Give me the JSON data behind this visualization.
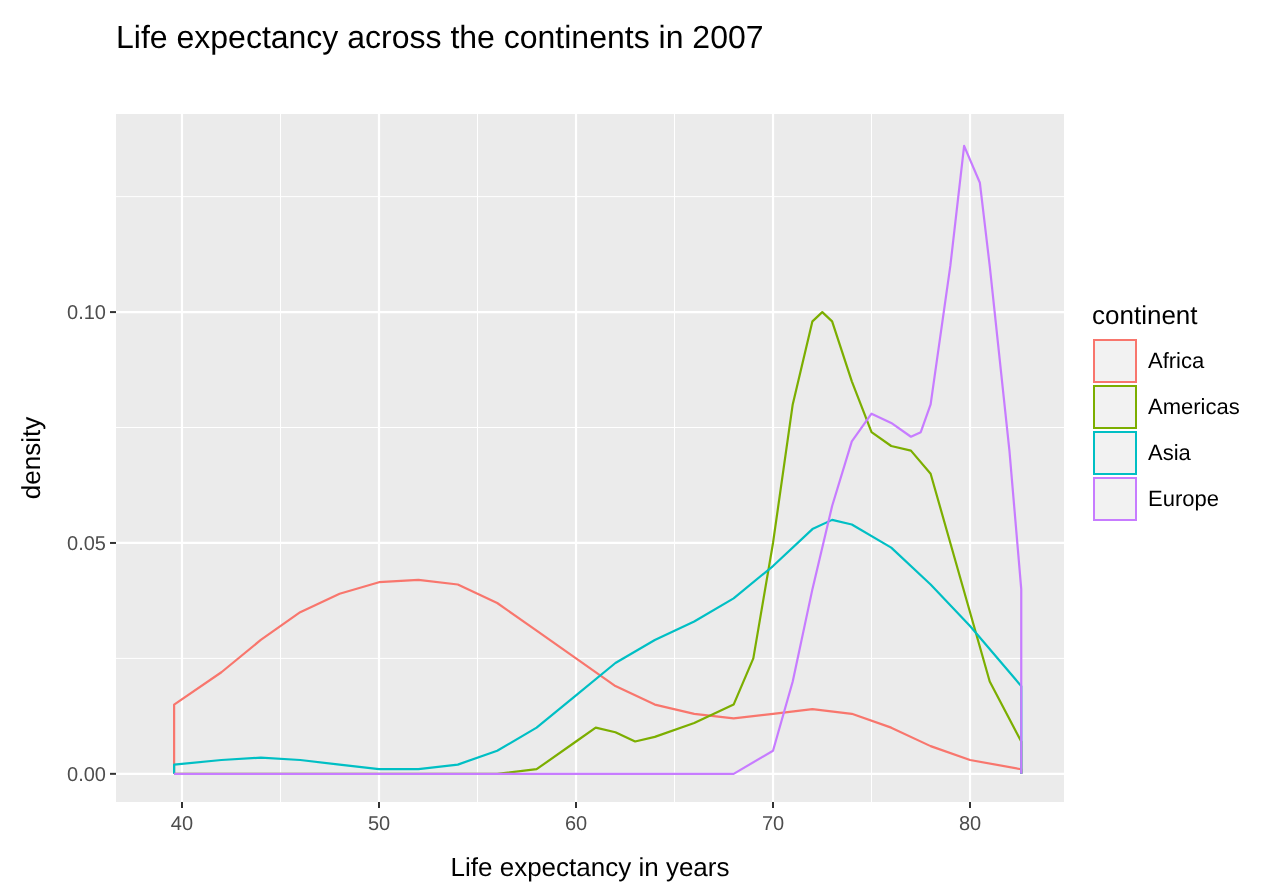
{
  "chart_data": {
    "type": "line",
    "title": "Life expectancy across the continents in 2007",
    "xlabel": "Life expectancy in years",
    "ylabel": "density",
    "legend_title": "continent",
    "legend": "right",
    "grid": true,
    "marker": "none",
    "line_style": "solid",
    "xlim": [
      36.65,
      84.77
    ],
    "ylim": [
      -0.0061,
      0.1429
    ],
    "xticks": [
      40,
      50,
      60,
      70,
      80
    ],
    "yticks": [
      {
        "value": 0,
        "label": "0.00"
      },
      {
        "value": 0.05,
        "label": "0.05"
      },
      {
        "value": 0.1,
        "label": "0.10"
      }
    ],
    "series": [
      {
        "name": "Africa",
        "color": "#f8766d",
        "x": [
          39.6,
          39.6,
          42,
          44,
          46,
          48,
          50,
          52,
          54,
          56,
          58,
          60,
          62,
          64,
          66,
          68,
          70,
          72,
          74,
          76,
          78,
          80,
          82.6,
          82.6
        ],
        "values": [
          0,
          0.015,
          0.022,
          0.029,
          0.035,
          0.039,
          0.0415,
          0.042,
          0.041,
          0.037,
          0.031,
          0.025,
          0.019,
          0.015,
          0.013,
          0.012,
          0.013,
          0.014,
          0.013,
          0.01,
          0.006,
          0.003,
          0.001,
          0
        ]
      },
      {
        "name": "Americas",
        "color": "#7cae00",
        "x": [
          39.6,
          56,
          58,
          60,
          61,
          62,
          63,
          64,
          66,
          68,
          69,
          70,
          71,
          72,
          72.5,
          73,
          74,
          75,
          76,
          77,
          78,
          79,
          80,
          81,
          82.6,
          82.6
        ],
        "values": [
          0,
          0,
          0.001,
          0.007,
          0.01,
          0.009,
          0.007,
          0.008,
          0.011,
          0.015,
          0.025,
          0.05,
          0.08,
          0.098,
          0.1,
          0.098,
          0.085,
          0.074,
          0.071,
          0.07,
          0.065,
          0.05,
          0.035,
          0.02,
          0.007,
          0
        ]
      },
      {
        "name": "Asia",
        "color": "#00bfc4",
        "x": [
          39.6,
          39.6,
          42,
          44,
          46,
          48,
          50,
          52,
          54,
          56,
          58,
          60,
          62,
          64,
          66,
          68,
          70,
          72,
          73,
          74,
          76,
          78,
          80,
          82.6,
          82.6
        ],
        "values": [
          0,
          0.002,
          0.003,
          0.0035,
          0.003,
          0.002,
          0.001,
          0.001,
          0.002,
          0.005,
          0.01,
          0.017,
          0.024,
          0.029,
          0.033,
          0.038,
          0.045,
          0.053,
          0.055,
          0.054,
          0.049,
          0.041,
          0.032,
          0.019,
          0
        ]
      },
      {
        "name": "Europe",
        "color": "#c77cff",
        "x": [
          39.6,
          68,
          70,
          71,
          72,
          73,
          74,
          75,
          76,
          77,
          77.5,
          78,
          79,
          79.7,
          80.5,
          81,
          82,
          82.6,
          82.6
        ],
        "values": [
          0,
          0,
          0.005,
          0.02,
          0.04,
          0.058,
          0.072,
          0.078,
          0.076,
          0.073,
          0.074,
          0.08,
          0.11,
          0.136,
          0.128,
          0.11,
          0.07,
          0.04,
          0
        ]
      }
    ]
  }
}
